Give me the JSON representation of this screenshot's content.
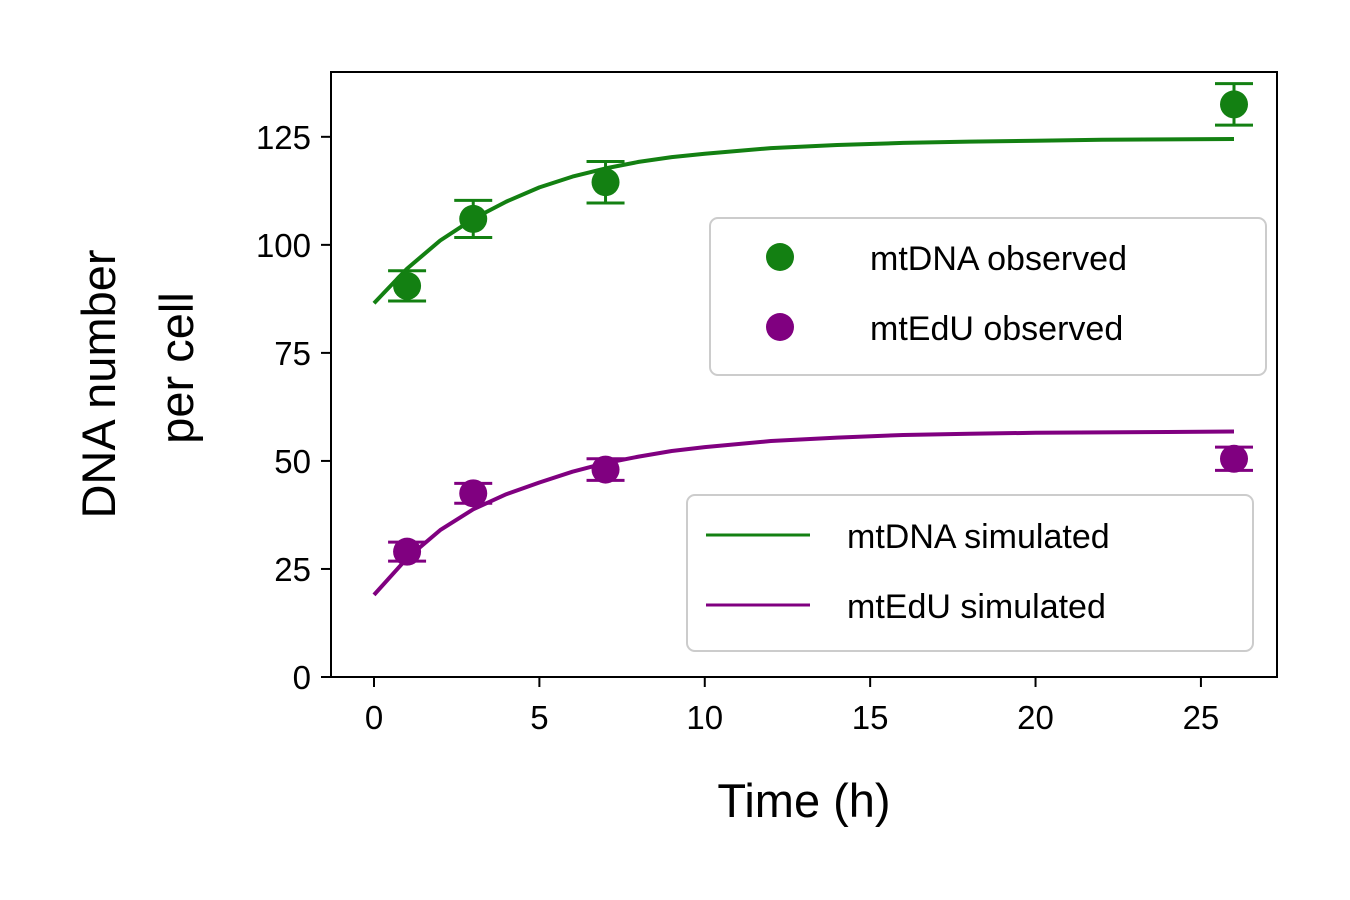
{
  "chart_data": {
    "type": "scatter",
    "title": "",
    "xlabel": "Time (h)",
    "ylabel_lines": [
      "DNA number",
      "per cell"
    ],
    "xlim": [
      -1.3,
      27.3
    ],
    "ylim": [
      0,
      140
    ],
    "x_ticks": [
      0,
      5,
      10,
      15,
      20,
      25
    ],
    "y_ticks": [
      0,
      25,
      50,
      75,
      100,
      125
    ],
    "grid": false,
    "observed": [
      {
        "name": "mtDNA observed",
        "color": "#138012",
        "x": [
          1,
          3,
          7,
          26
        ],
        "y": [
          90.5,
          106,
          114.5,
          132.5
        ],
        "err": [
          3.5,
          4.3,
          4.8,
          4.8
        ]
      },
      {
        "name": "mtEdU observed",
        "color": "#800080",
        "x": [
          1,
          3,
          7,
          26
        ],
        "y": [
          29,
          42.5,
          48,
          50.5
        ],
        "err": [
          2.2,
          2.3,
          2.5,
          2.7
        ]
      }
    ],
    "simulated": [
      {
        "name": "mtDNA simulated",
        "color": "#138012",
        "x": [
          0,
          1,
          2,
          3,
          4,
          5,
          6,
          7,
          8,
          9,
          10,
          12,
          14,
          16,
          18,
          20,
          22,
          24,
          26
        ],
        "y": [
          86.5,
          94.5,
          101,
          106,
          110,
          113.3,
          115.8,
          117.7,
          119.2,
          120.3,
          121.1,
          122.4,
          123.1,
          123.6,
          123.9,
          124.1,
          124.3,
          124.4,
          124.5
        ]
      },
      {
        "name": "mtEdU simulated",
        "color": "#800080",
        "x": [
          0,
          1,
          2,
          3,
          4,
          5,
          6,
          7,
          8,
          9,
          10,
          12,
          14,
          16,
          18,
          20,
          22,
          24,
          26
        ],
        "y": [
          19,
          27.5,
          34,
          38.8,
          42.3,
          45,
          47.5,
          49.5,
          51,
          52.3,
          53.2,
          54.6,
          55.4,
          56,
          56.3,
          56.5,
          56.6,
          56.7,
          56.8
        ]
      }
    ],
    "legends": [
      {
        "placement": "upper-right",
        "entries": [
          "mtDNA observed",
          "mtEdU observed"
        ]
      },
      {
        "placement": "lower-right",
        "entries": [
          "mtDNA simulated",
          "mtEdU simulated"
        ]
      }
    ]
  }
}
